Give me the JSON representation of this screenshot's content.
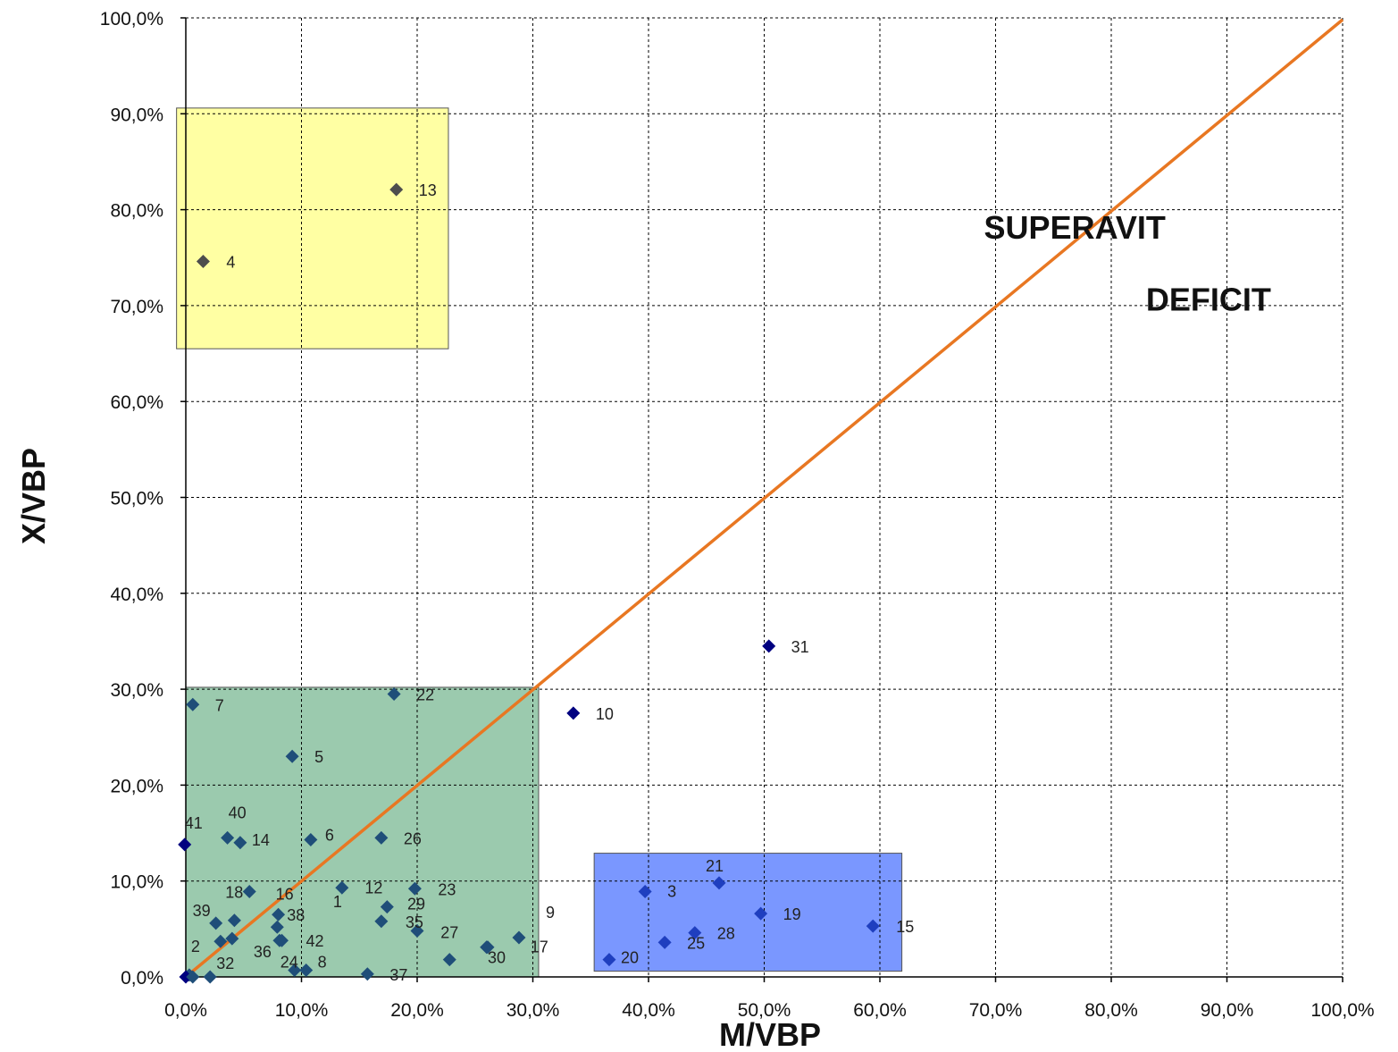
{
  "colors": {
    "diagonal": "#E87722",
    "grid": "#000000",
    "yellow_box": "#FFFF99",
    "green_box": "#58A678",
    "blue_box": "#6C8CFF",
    "marker_dark": "#4D4D4D",
    "marker_navy": "#000080",
    "marker_teal": "#1F4E79",
    "marker_blue": "#1F3FBF"
  },
  "chart_data": {
    "type": "scatter",
    "xlabel": "M/VBP",
    "ylabel": "X/VBP",
    "xlim": [
      0,
      100
    ],
    "ylim": [
      0,
      100
    ],
    "unit": "%",
    "grid": true,
    "x_ticks": [
      "0,0%",
      "10,0%",
      "20,0%",
      "30,0%",
      "40,0%",
      "50,0%",
      "60,0%",
      "70,0%",
      "80,0%",
      "90,0%",
      "100,0%"
    ],
    "y_ticks": [
      "0,0%",
      "10,0%",
      "20,0%",
      "30,0%",
      "40,0%",
      "50,0%",
      "60,0%",
      "70,0%",
      "80,0%",
      "90,0%",
      "100,0%"
    ],
    "reference_line": {
      "from": [
        0,
        0
      ],
      "to": [
        100,
        100
      ]
    },
    "annotations": [
      {
        "text": "SUPERAVIT",
        "x": 69,
        "y": 77
      },
      {
        "text": "DEFICIT",
        "x": 83,
        "y": 69.5
      }
    ],
    "regions": [
      {
        "color": "yellow",
        "x": [
          -0.8,
          22.7
        ],
        "y": [
          65.5,
          90.6
        ]
      },
      {
        "color": "green",
        "x": [
          0,
          30.5
        ],
        "y": [
          0,
          30.2
        ]
      },
      {
        "color": "blue",
        "x": [
          35.3,
          61.9
        ],
        "y": [
          0.6,
          12.9
        ]
      }
    ],
    "points": [
      {
        "label": "1",
        "x": 13.5,
        "y": 9.3,
        "dx": -10,
        "dy": 22,
        "group": "green"
      },
      {
        "label": "2",
        "x": 0.3,
        "y": 0.2,
        "dx": 2,
        "dy": -26,
        "group": "green"
      },
      {
        "label": "3",
        "x": 39.7,
        "y": 8.9,
        "dx": 25,
        "dy": 6,
        "group": "blue"
      },
      {
        "label": "4",
        "x": 1.5,
        "y": 74.6,
        "dx": 26,
        "dy": 7,
        "group": "yellow"
      },
      {
        "label": "5",
        "x": 9.2,
        "y": 23.0,
        "dx": 25,
        "dy": 7,
        "group": "green"
      },
      {
        "label": "6",
        "x": 10.8,
        "y": 14.3,
        "dx": 16,
        "dy": 1,
        "group": "green"
      },
      {
        "label": "7",
        "x": 0.6,
        "y": 28.4,
        "dx": 25,
        "dy": 7,
        "group": "green"
      },
      {
        "label": "8",
        "x": 10.4,
        "y": 0.7,
        "dx": 13,
        "dy": -3,
        "group": "green"
      },
      {
        "label": "9",
        "x": 28.8,
        "y": 4.1,
        "dx": 30,
        "dy": -22,
        "group": "green"
      },
      {
        "label": "10",
        "x": 33.5,
        "y": 27.5,
        "dx": 25,
        "dy": 7,
        "group": "navy"
      },
      {
        "label": "12",
        "x": 17.4,
        "y": 7.3,
        "dx": -25,
        "dy": -15,
        "group": "green"
      },
      {
        "label": "13",
        "x": 18.2,
        "y": 82.1,
        "dx": 25,
        "dy": 7,
        "group": "yellow"
      },
      {
        "label": "14",
        "x": 4.7,
        "y": 14.0,
        "dx": 13,
        "dy": 3,
        "group": "green"
      },
      {
        "label": "15",
        "x": 59.4,
        "y": 5.3,
        "dx": 26,
        "dy": 7,
        "group": "blue"
      },
      {
        "label": "16",
        "x": 8.0,
        "y": 6.5,
        "dx": -3,
        "dy": -17,
        "group": "green"
      },
      {
        "label": "17",
        "x": 26.0,
        "y": 3.1,
        "dx": 49,
        "dy": 6,
        "group": "green"
      },
      {
        "label": "18",
        "x": 5.5,
        "y": 8.9,
        "dx": -27,
        "dy": 7,
        "group": "green"
      },
      {
        "label": "19",
        "x": 49.7,
        "y": 6.6,
        "dx": 25,
        "dy": 7,
        "group": "blue"
      },
      {
        "label": "20",
        "x": 36.6,
        "y": 1.8,
        "dx": 13,
        "dy": 4,
        "group": "blue"
      },
      {
        "label": "21",
        "x": 46.1,
        "y": 9.8,
        "dx": -15,
        "dy": -13,
        "group": "blue"
      },
      {
        "label": "22",
        "x": 18.0,
        "y": 29.5,
        "dx": 25,
        "dy": 7,
        "group": "green"
      },
      {
        "label": "23",
        "x": 19.8,
        "y": 9.2,
        "dx": 26,
        "dy": 7,
        "group": "green"
      },
      {
        "label": "24",
        "x": 9.4,
        "y": 0.7,
        "dx": -16,
        "dy": -3,
        "group": "green"
      },
      {
        "label": "25",
        "x": 41.4,
        "y": 3.6,
        "dx": 25,
        "dy": 7,
        "group": "blue"
      },
      {
        "label": "26",
        "x": 16.9,
        "y": 14.5,
        "dx": 25,
        "dy": 7,
        "group": "green"
      },
      {
        "label": "27",
        "x": 22.8,
        "y": 1.8,
        "dx": -10,
        "dy": -24,
        "group": "green"
      },
      {
        "label": "28",
        "x": 44.0,
        "y": 4.6,
        "dx": 25,
        "dy": 7,
        "group": "blue"
      },
      {
        "label": "29",
        "x": 20.0,
        "y": 4.8,
        "dx": -11,
        "dy": -24,
        "group": "green"
      },
      {
        "label": "30",
        "x": 26.1,
        "y": 3.1,
        "dx": 0,
        "dy": 18,
        "group": "green"
      },
      {
        "label": "31",
        "x": 50.4,
        "y": 34.5,
        "dx": 25,
        "dy": 7,
        "group": "navy"
      },
      {
        "label": "32",
        "x": 2.1,
        "y": 0.0,
        "dx": 7,
        "dy": -9,
        "group": "green"
      },
      {
        "label": "35",
        "x": 16.9,
        "y": 5.8,
        "dx": 27,
        "dy": 7,
        "group": "green"
      },
      {
        "label": "36",
        "x": 8.1,
        "y": 3.8,
        "dx": -29,
        "dy": 19,
        "group": "green"
      },
      {
        "label": "37",
        "x": 15.7,
        "y": 0.3,
        "dx": 25,
        "dy": 7,
        "group": "green"
      },
      {
        "label": "38",
        "x": 7.9,
        "y": 5.2,
        "dx": 11,
        "dy": -7,
        "group": "green"
      },
      {
        "label": "39",
        "x": 2.6,
        "y": 5.6,
        "dx": -26,
        "dy": -8,
        "group": "green"
      },
      {
        "label": "40",
        "x": 3.6,
        "y": 14.5,
        "dx": 1,
        "dy": -22,
        "group": "green"
      },
      {
        "label": "41",
        "x": -0.1,
        "y": 13.8,
        "dx": 0,
        "dy": -18,
        "group": "navy"
      },
      {
        "label": "42",
        "x": 8.3,
        "y": 3.8,
        "dx": 27,
        "dy": 7,
        "group": "green"
      },
      {
        "label": "",
        "x": 3.0,
        "y": 3.7,
        "dx": 0,
        "dy": 0,
        "group": "green"
      },
      {
        "label": "",
        "x": 4.2,
        "y": 5.9,
        "dx": 0,
        "dy": 0,
        "group": "green"
      },
      {
        "label": "",
        "x": 4.0,
        "y": 4.0,
        "dx": 0,
        "dy": 0,
        "group": "green"
      },
      {
        "label": "",
        "x": 0.0,
        "y": 0.0,
        "dx": 0,
        "dy": 0,
        "group": "navy"
      },
      {
        "label": "",
        "x": 0.6,
        "y": 0.0,
        "dx": 0,
        "dy": 0,
        "group": "green"
      }
    ]
  }
}
